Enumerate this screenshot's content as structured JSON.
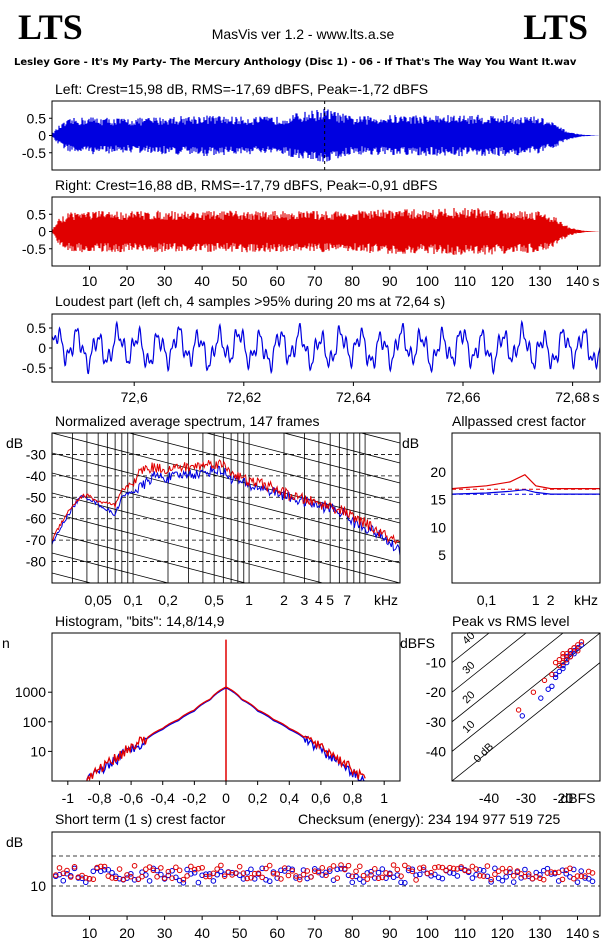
{
  "header": {
    "logo_left": "LTS",
    "logo_right": "LTS",
    "app_title": "MasVis ver 1.2 - www.lts.a.se",
    "track": "Lesley Gore - It's My Party- The Mercury Anthology (Disc 1) - 06 - If That's The Way You Want It.wav"
  },
  "colors": {
    "left": "#0000e0",
    "right": "#e00000"
  },
  "chart_data": [
    {
      "id": "left",
      "type": "area",
      "title": "Left: Crest=15,98 dB, RMS=-17,69 dBFS, Peak=-1,72 dBFS",
      "ylim": [
        -1,
        1
      ],
      "xlim": [
        0,
        146
      ],
      "y_ticks": [
        "0.5",
        "0",
        "-0.5"
      ],
      "envelope_x": [
        0,
        2,
        5,
        10,
        20,
        30,
        40,
        50,
        60,
        72.64,
        80,
        90,
        100,
        110,
        120,
        130,
        134,
        136,
        138,
        140,
        142,
        146
      ],
      "envelope_y": [
        0.05,
        0.3,
        0.5,
        0.55,
        0.5,
        0.55,
        0.6,
        0.55,
        0.55,
        0.8,
        0.55,
        0.6,
        0.6,
        0.6,
        0.6,
        0.55,
        0.35,
        0.2,
        0.1,
        0.05,
        0.02,
        0.0
      ],
      "marker_x": 72.64
    },
    {
      "id": "right",
      "type": "area",
      "title": "Right: Crest=16,88 dB, RMS=-17,79 dBFS, Peak=-0,91 dBFS",
      "ylim": [
        -1,
        1
      ],
      "xlim": [
        0,
        146
      ],
      "y_ticks": [
        "0.5",
        "0",
        "-0.5"
      ],
      "x_ticks": [
        "10",
        "20",
        "30",
        "40",
        "50",
        "60",
        "70",
        "80",
        "90",
        "100",
        "110",
        "120",
        "130",
        "140"
      ],
      "x_unit": "s",
      "envelope_x": [
        0,
        2,
        5,
        10,
        20,
        30,
        40,
        50,
        60,
        70,
        80,
        90,
        100,
        110,
        120,
        130,
        134,
        136,
        138,
        140,
        142,
        146
      ],
      "envelope_y": [
        0.05,
        0.4,
        0.6,
        0.6,
        0.6,
        0.6,
        0.6,
        0.6,
        0.6,
        0.6,
        0.6,
        0.65,
        0.65,
        0.7,
        0.65,
        0.6,
        0.45,
        0.25,
        0.12,
        0.06,
        0.02,
        0.0
      ]
    },
    {
      "id": "loudest",
      "type": "line",
      "title": "Loudest part (left  ch, 4 samples >95% during 20 ms at 72,64 s)",
      "xlim": [
        72.585,
        72.685
      ],
      "ylim": [
        -0.85,
        0.85
      ],
      "y_ticks": [
        "0.5",
        "0",
        "-0.5"
      ],
      "x_ticks": [
        "72,6",
        "72,62",
        "72,64",
        "72,66",
        "72,68"
      ],
      "x_unit": "s"
    },
    {
      "id": "spectrum",
      "type": "line",
      "title": "Normalized average spectrum, 147 frames",
      "ylabel": "dB",
      "xlim": [
        0.02,
        20
      ],
      "ylim": [
        -90,
        -20
      ],
      "y_ticks": [
        "-30",
        "-40",
        "-50",
        "-60",
        "-70",
        "-80"
      ],
      "x_ticks": [
        "0,05",
        "0,1",
        "0,2",
        "0,5",
        "1",
        "2",
        "3",
        "4",
        "5",
        "7"
      ],
      "x_unit": "kHz",
      "x": [
        0.02,
        0.025,
        0.03,
        0.035,
        0.04,
        0.05,
        0.06,
        0.07,
        0.08,
        0.1,
        0.12,
        0.15,
        0.2,
        0.25,
        0.3,
        0.4,
        0.5,
        0.6,
        0.7,
        0.8,
        1,
        1.2,
        1.5,
        2,
        2.5,
        3,
        4,
        5,
        6,
        7,
        8,
        10,
        12,
        15,
        20
      ],
      "series": [
        {
          "color": "left",
          "values": [
            -72,
            -62,
            -55,
            -50,
            -50,
            -53,
            -56,
            -58,
            -50,
            -47,
            -45,
            -40,
            -41,
            -40,
            -39,
            -39,
            -37,
            -38,
            -41,
            -42,
            -45,
            -45,
            -47,
            -49,
            -51,
            -52,
            -54,
            -55,
            -57,
            -58,
            -62,
            -64,
            -66,
            -70,
            -75
          ]
        },
        {
          "color": "right",
          "values": [
            -70,
            -60,
            -54,
            -50,
            -49,
            -52,
            -53,
            -54,
            -47,
            -43,
            -37,
            -36,
            -37,
            -36,
            -36,
            -35,
            -34,
            -35,
            -38,
            -40,
            -43,
            -43,
            -45,
            -48,
            -50,
            -51,
            -53,
            -54,
            -56,
            -57,
            -60,
            -62,
            -65,
            -68,
            -72
          ]
        }
      ]
    },
    {
      "id": "allpassed",
      "type": "line",
      "title": "Allpassed crest factor",
      "ylabel": "dB",
      "xlim": [
        0.02,
        20
      ],
      "ylim": [
        0,
        27
      ],
      "y_ticks": [
        "20",
        "15",
        "10",
        "5"
      ],
      "x_ticks": [
        "0,1",
        "1",
        "2"
      ],
      "x_unit": "kHz",
      "x": [
        0.02,
        0.1,
        0.3,
        0.6,
        1,
        2,
        5,
        20
      ],
      "series": [
        {
          "color": "left",
          "values": [
            16,
            16.2,
            16.5,
            16.8,
            16.3,
            16.0,
            16.0,
            16.0
          ]
        },
        {
          "color": "right",
          "values": [
            17,
            17.5,
            18.2,
            19.5,
            17.5,
            17.0,
            17.0,
            17.0
          ]
        }
      ],
      "reference_lines": [
        15.98,
        16.88
      ]
    },
    {
      "id": "histogram",
      "type": "line",
      "title": "Histogram, \"bits\": 14,8/14,9",
      "ylabel": "n",
      "xlim": [
        -1.1,
        1.1
      ],
      "ylog": true,
      "ylim": [
        1,
        100000
      ],
      "y_ticks": [
        "1000",
        "100",
        "10"
      ],
      "x_ticks": [
        "-1",
        "-0,8",
        "-0,6",
        "-0,4",
        "-0,2",
        "0",
        "0,2",
        "0,4",
        "0,6",
        "0,8",
        "1"
      ],
      "x": [
        -0.88,
        -0.8,
        -0.7,
        -0.6,
        -0.5,
        -0.4,
        -0.3,
        -0.2,
        -0.1,
        0,
        0.1,
        0.2,
        0.3,
        0.4,
        0.5,
        0.6,
        0.7,
        0.8,
        0.88
      ],
      "series": [
        {
          "color": "left",
          "values": [
            1,
            2,
            5,
            12,
            26,
            55,
            110,
            230,
            550,
            1400,
            550,
            230,
            110,
            55,
            26,
            12,
            5,
            2,
            1
          ]
        },
        {
          "color": "right",
          "values": [
            1,
            2.5,
            6,
            14,
            28,
            60,
            120,
            250,
            580,
            1500,
            580,
            250,
            120,
            60,
            28,
            14,
            6,
            2.5,
            1
          ]
        }
      ],
      "peak_spike": 60000
    },
    {
      "id": "peak_vs_rms",
      "type": "scatter",
      "title": "Peak vs RMS level",
      "ylabel": "dBFS",
      "xlabel": "dBFS",
      "xlim": [
        -50,
        -10
      ],
      "ylim": [
        -50,
        0
      ],
      "y_ticks": [
        "-10",
        "-20",
        "-30",
        "-40"
      ],
      "x_ticks": [
        "-40",
        "-30",
        "-20"
      ],
      "diagonal_labels": [
        "40",
        "30",
        "20",
        "10",
        "0 dB"
      ],
      "series": [
        {
          "color": "left",
          "x": [
            -31,
            -26,
            -23,
            -22,
            -20,
            -19,
            -18,
            -17,
            -16,
            -18,
            -20,
            -21,
            -19,
            -17,
            -15,
            -22,
            -24,
            -18,
            -16,
            -19
          ],
          "y": [
            -28,
            -22,
            -18,
            -15,
            -12,
            -10,
            -8,
            -6,
            -5,
            -7,
            -11,
            -13,
            -9,
            -7,
            -4,
            -14,
            -19,
            -6,
            -5,
            -8
          ]
        },
        {
          "color": "right",
          "x": [
            -32,
            -28,
            -25,
            -22,
            -21,
            -20,
            -19,
            -18,
            -17,
            -16,
            -19,
            -20,
            -18,
            -17,
            -21,
            -23,
            -15,
            -18,
            -16,
            -20
          ],
          "y": [
            -26,
            -20,
            -16,
            -10,
            -9,
            -8,
            -7,
            -6,
            -5,
            -4,
            -9,
            -10,
            -6,
            -5,
            -11,
            -14,
            -3,
            -8,
            -6,
            -7
          ]
        }
      ]
    },
    {
      "id": "short_term_crest",
      "type": "scatter",
      "title": "Short term (1 s) crest factor",
      "checksum": "Checksum (energy):   234 194 977 519 725",
      "ylabel": "dB",
      "xlim": [
        0,
        146
      ],
      "ylim": [
        0,
        28
      ],
      "y_ticks": [
        "10"
      ],
      "x_ticks": [
        "10",
        "20",
        "30",
        "40",
        "50",
        "60",
        "70",
        "80",
        "90",
        "100",
        "110",
        "120",
        "130",
        "140"
      ],
      "x_unit": "s",
      "reference_lines": [
        10,
        20
      ],
      "series": [
        {
          "color": "left",
          "mean": 13.5
        },
        {
          "color": "right",
          "mean": 14.5
        }
      ]
    }
  ]
}
